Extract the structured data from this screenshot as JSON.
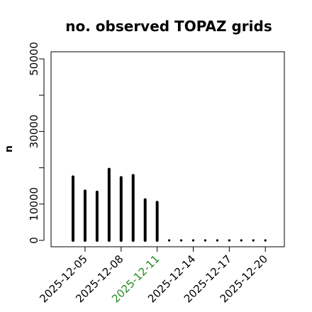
{
  "chart_data": {
    "type": "bar",
    "title": "no. observed TOPAZ grids",
    "ylabel": "n",
    "xlabel": "",
    "ylim": [
      0,
      50000
    ],
    "yticks": [
      0,
      10000,
      30000,
      50000
    ],
    "categories": [
      "2025-12-04",
      "2025-12-05",
      "2025-12-06",
      "2025-12-07",
      "2025-12-08",
      "2025-12-09",
      "2025-12-10",
      "2025-12-11",
      "2025-12-12",
      "2025-12-13",
      "2025-12-14",
      "2025-12-15",
      "2025-12-16",
      "2025-12-17",
      "2025-12-18",
      "2025-12-19",
      "2025-12-20"
    ],
    "values": [
      17500,
      13600,
      13300,
      19600,
      17300,
      17900,
      11200,
      10500,
      0,
      0,
      0,
      0,
      0,
      0,
      0,
      0,
      0
    ],
    "xtick_labels": [
      {
        "label": "2025-12-05",
        "color": "#000000"
      },
      {
        "label": "2025-12-08",
        "color": "#000000"
      },
      {
        "label": "2025-12-11",
        "color": "#228B22"
      },
      {
        "label": "2025-12-14",
        "color": "#000000"
      },
      {
        "label": "2025-12-17",
        "color": "#000000"
      },
      {
        "label": "2025-12-20",
        "color": "#000000"
      }
    ],
    "bar_color": "#000000",
    "grid": false
  }
}
